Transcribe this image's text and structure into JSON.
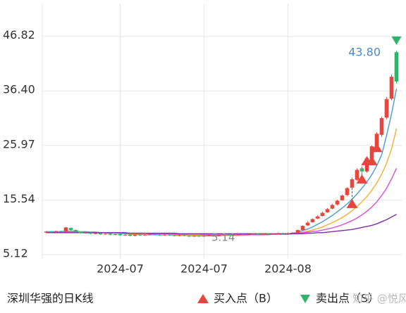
{
  "chart_data": {
    "type": "candlestick",
    "title": "深圳华强的日K线",
    "categories": [
      null,
      null,
      null,
      null,
      null,
      null,
      null,
      null,
      null,
      null,
      null,
      null,
      null,
      null,
      null,
      "2024-07",
      null,
      null,
      null,
      null,
      null,
      null,
      null,
      null,
      null,
      null,
      null,
      null,
      null,
      null,
      null,
      null,
      "2024-07",
      null,
      null,
      null,
      null,
      null,
      null,
      null,
      null,
      null,
      null,
      null,
      null,
      null,
      null,
      null,
      null,
      "2024-08",
      null,
      null,
      null,
      null,
      null,
      null,
      null,
      null,
      null,
      null,
      null,
      null,
      null,
      null,
      null,
      null,
      null,
      null,
      null,
      null,
      null,
      null
    ],
    "candles": [
      [
        9.3,
        9.6,
        9.2,
        9.5
      ],
      [
        9.5,
        9.6,
        9.3,
        9.4
      ],
      [
        9.4,
        9.7,
        9.3,
        9.6
      ],
      [
        9.6,
        9.7,
        9.4,
        9.5
      ],
      [
        9.5,
        10.4,
        9.4,
        10.3
      ],
      [
        10.2,
        10.3,
        9.7,
        9.8
      ],
      [
        9.8,
        9.9,
        9.3,
        9.4
      ],
      [
        9.4,
        9.5,
        9.1,
        9.2
      ],
      [
        9.2,
        9.4,
        9.1,
        9.3
      ],
      [
        9.3,
        9.4,
        9.0,
        9.1
      ],
      [
        9.1,
        9.3,
        9.0,
        9.2
      ],
      [
        9.2,
        9.3,
        8.9,
        9.0
      ],
      [
        9.0,
        9.2,
        8.9,
        9.1
      ],
      [
        9.1,
        9.2,
        8.8,
        8.9
      ],
      [
        8.9,
        9.1,
        8.8,
        9.0
      ],
      [
        9.0,
        9.1,
        8.7,
        8.8
      ],
      [
        8.8,
        9.0,
        8.7,
        8.9
      ],
      [
        8.9,
        9.0,
        8.6,
        8.7
      ],
      [
        8.7,
        9.0,
        8.6,
        8.9
      ],
      [
        8.9,
        9.0,
        8.7,
        8.8
      ],
      [
        8.8,
        9.0,
        8.7,
        8.9
      ],
      [
        8.9,
        9.1,
        8.8,
        9.0
      ],
      [
        9.0,
        9.1,
        8.8,
        8.9
      ],
      [
        8.9,
        9.0,
        8.7,
        8.8
      ],
      [
        8.8,
        9.0,
        8.7,
        8.9
      ],
      [
        8.9,
        9.0,
        8.7,
        8.8
      ],
      [
        8.8,
        8.9,
        8.6,
        8.7
      ],
      [
        8.7,
        8.9,
        8.6,
        8.8
      ],
      [
        8.8,
        8.9,
        8.6,
        8.7
      ],
      [
        8.7,
        8.8,
        8.5,
        8.6
      ],
      [
        8.6,
        8.8,
        8.5,
        8.7
      ],
      [
        8.7,
        8.8,
        8.5,
        8.6
      ],
      [
        8.6,
        8.8,
        8.5,
        8.7
      ],
      [
        8.7,
        8.9,
        8.6,
        8.8
      ],
      [
        8.8,
        8.9,
        8.6,
        8.7
      ],
      [
        8.7,
        8.9,
        8.6,
        8.8
      ],
      [
        8.8,
        9.0,
        8.7,
        8.9
      ],
      [
        8.9,
        9.0,
        8.7,
        8.8
      ],
      [
        8.8,
        9.0,
        8.7,
        8.9
      ],
      [
        8.9,
        9.1,
        8.8,
        9.0
      ],
      [
        9.0,
        9.1,
        8.8,
        8.9
      ],
      [
        8.9,
        9.1,
        8.8,
        9.0
      ],
      [
        9.0,
        9.2,
        8.9,
        9.1
      ],
      [
        9.1,
        9.2,
        8.9,
        9.0
      ],
      [
        9.0,
        9.2,
        8.9,
        9.1
      ],
      [
        9.1,
        9.2,
        8.9,
        9.0
      ],
      [
        9.0,
        9.2,
        8.9,
        9.1
      ],
      [
        9.1,
        9.3,
        9.0,
        9.2
      ],
      [
        9.2,
        9.3,
        9.0,
        9.1
      ],
      [
        9.1,
        9.3,
        9.0,
        9.2
      ],
      [
        9.2,
        9.4,
        9.1,
        9.3
      ],
      [
        9.3,
        9.9,
        9.2,
        9.8
      ],
      [
        9.8,
        10.7,
        9.7,
        10.6
      ],
      [
        10.7,
        11.5,
        10.6,
        11.2
      ],
      [
        11.3,
        12.0,
        11.2,
        11.9
      ],
      [
        12.0,
        12.6,
        11.9,
        12.4
      ],
      [
        12.5,
        13.3,
        12.4,
        13.1
      ],
      [
        13.2,
        14.0,
        13.1,
        13.8
      ],
      [
        13.9,
        14.8,
        13.8,
        14.6
      ],
      [
        14.7,
        15.6,
        14.5,
        15.4
      ],
      [
        15.5,
        16.6,
        15.4,
        16.4
      ],
      [
        16.5,
        18.0,
        16.3,
        17.8
      ],
      [
        17.9,
        19.8,
        17.7,
        19.5
      ],
      [
        19.4,
        21.6,
        19.2,
        21.3
      ],
      [
        21.6,
        22.0,
        20.6,
        21.0
      ],
      [
        21.0,
        23.8,
        20.8,
        23.5
      ],
      [
        23.4,
        26.0,
        23.0,
        25.8
      ],
      [
        25.9,
        28.5,
        24.8,
        28.2
      ],
      [
        28.0,
        31.5,
        27.6,
        31.2
      ],
      [
        31.3,
        35.2,
        31.0,
        34.8
      ],
      [
        34.9,
        39.5,
        34.6,
        39.1
      ],
      [
        43.8,
        44.1,
        37.8,
        38.2
      ]
    ],
    "up_color": "#e8453c",
    "down_color": "#2fb36b",
    "lines": [
      {
        "color": "#4b9bd6",
        "values": [
          9.5,
          9.5,
          9.5,
          9.5,
          9.6,
          9.6,
          9.6,
          9.5,
          9.5,
          9.4,
          9.4,
          9.3,
          9.3,
          9.2,
          9.2,
          9.1,
          9.1,
          9.0,
          9.0,
          9.0,
          8.9,
          8.9,
          8.9,
          8.9,
          8.9,
          8.9,
          8.8,
          8.8,
          8.8,
          8.8,
          8.7,
          8.7,
          8.7,
          8.7,
          8.7,
          8.7,
          8.8,
          8.8,
          8.8,
          8.8,
          8.9,
          8.9,
          8.9,
          9.0,
          9.0,
          9.0,
          9.0,
          9.1,
          9.1,
          9.1,
          9.2,
          9.4,
          9.7,
          10.0,
          10.4,
          10.9,
          11.4,
          12.0,
          12.6,
          13.3,
          14.0,
          14.8,
          15.7,
          16.7,
          17.8,
          19.0,
          20.4,
          22.1,
          24.2,
          27.9,
          32.0,
          36.8
        ]
      },
      {
        "color": "#f0b030",
        "values": [
          9.4,
          9.4,
          9.4,
          9.5,
          9.5,
          9.5,
          9.5,
          9.5,
          9.4,
          9.4,
          9.4,
          9.3,
          9.3,
          9.3,
          9.2,
          9.2,
          9.2,
          9.1,
          9.1,
          9.1,
          9.0,
          9.0,
          9.0,
          9.0,
          8.9,
          8.9,
          8.9,
          8.9,
          8.9,
          8.8,
          8.8,
          8.8,
          8.8,
          8.8,
          8.8,
          8.8,
          8.8,
          8.8,
          8.8,
          8.8,
          8.8,
          8.9,
          8.9,
          8.9,
          8.9,
          8.9,
          9.0,
          9.0,
          9.0,
          9.0,
          9.1,
          9.3,
          9.4,
          9.6,
          9.8,
          10.1,
          10.4,
          10.8,
          11.2,
          11.7,
          12.2,
          12.8,
          13.5,
          14.3,
          15.2,
          16.2,
          17.4,
          18.8,
          20.5,
          22.6,
          25.3,
          29.2
        ]
      },
      {
        "color": "#d94fd6",
        "values": [
          9.4,
          9.4,
          9.4,
          9.4,
          9.4,
          9.4,
          9.4,
          9.4,
          9.4,
          9.4,
          9.4,
          9.3,
          9.3,
          9.3,
          9.3,
          9.3,
          9.2,
          9.2,
          9.2,
          9.2,
          9.2,
          9.1,
          9.1,
          9.1,
          9.1,
          9.1,
          9.0,
          9.0,
          9.0,
          9.0,
          9.0,
          9.0,
          8.9,
          8.9,
          8.9,
          8.9,
          8.9,
          8.9,
          8.9,
          8.9,
          8.9,
          8.9,
          8.9,
          8.9,
          8.9,
          8.9,
          9.0,
          9.0,
          9.0,
          9.0,
          9.1,
          9.2,
          9.3,
          9.4,
          9.5,
          9.6,
          9.8,
          10.0,
          10.2,
          10.5,
          10.8,
          11.2,
          11.6,
          12.1,
          12.7,
          13.4,
          14.2,
          15.2,
          16.4,
          17.8,
          19.6,
          21.6
        ]
      },
      {
        "color": "#7b2fa8",
        "values": [
          9.3,
          9.3,
          9.3,
          9.3,
          9.3,
          9.3,
          9.3,
          9.3,
          9.3,
          9.3,
          9.3,
          9.3,
          9.3,
          9.3,
          9.3,
          9.3,
          9.3,
          9.2,
          9.2,
          9.2,
          9.2,
          9.2,
          9.2,
          9.2,
          9.2,
          9.2,
          9.2,
          9.1,
          9.1,
          9.1,
          9.1,
          9.1,
          9.1,
          9.1,
          9.1,
          9.1,
          9.1,
          9.1,
          9.1,
          9.1,
          9.1,
          9.1,
          9.1,
          9.1,
          9.1,
          9.1,
          9.1,
          9.1,
          9.1,
          9.1,
          9.1,
          9.1,
          9.1,
          9.2,
          9.2,
          9.3,
          9.3,
          9.4,
          9.5,
          9.6,
          9.7,
          9.8,
          9.9,
          10.1,
          10.3,
          10.5,
          10.7,
          11.0,
          11.4,
          11.8,
          12.3,
          12.8
        ]
      }
    ],
    "buy_points": {
      "name": "买入点（B）",
      "color": "#e8453c",
      "indices": [
        62,
        64,
        65,
        66,
        67
      ],
      "values": [
        14.8,
        19.5,
        23.0,
        23.0,
        25.5
      ]
    },
    "sell_points": {
      "name": "卖出点（S）",
      "color": "#2fb36b",
      "indices": [
        71
      ],
      "values": [
        46.0
      ]
    },
    "annotations": [
      "43.80",
      "5.14"
    ],
    "watermark": "知乎 @悦风",
    "ylim": [
      4.3,
      53.1
    ],
    "yticks": [
      {
        "value": 5.12,
        "label": "5.12"
      },
      15.54,
      25.97,
      {
        "value": 36.4,
        "label": "36.40"
      },
      46.82
    ],
    "grid": true
  }
}
